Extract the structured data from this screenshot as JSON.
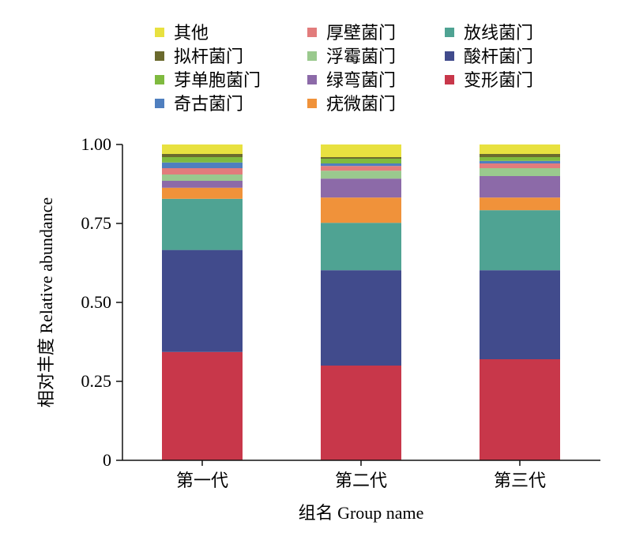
{
  "chart_data": {
    "type": "bar",
    "stacked": true,
    "categories": [
      "第一代",
      "第二代",
      "第三代"
    ],
    "xlabel": "组名 Group name",
    "ylabel": "相对丰度 Relative abundance",
    "ylim": [
      0,
      1
    ],
    "yticks": [
      "0",
      "0.25",
      "0.50",
      "0.75",
      "1.00"
    ],
    "series": [
      {
        "name": "变形菌门",
        "color": "#c8374a",
        "values": [
          0.343,
          0.3,
          0.32
        ]
      },
      {
        "name": "酸杆菌门",
        "color": "#414b8c",
        "values": [
          0.323,
          0.302,
          0.282
        ]
      },
      {
        "name": "放线菌门",
        "color": "#4fa393",
        "values": [
          0.162,
          0.15,
          0.19
        ]
      },
      {
        "name": "疣微菌门",
        "color": "#f0923a",
        "values": [
          0.035,
          0.08,
          0.04
        ]
      },
      {
        "name": "绿弯菌门",
        "color": "#8c6aa8",
        "values": [
          0.022,
          0.06,
          0.068
        ]
      },
      {
        "name": "浮霉菌门",
        "color": "#9ac98e",
        "values": [
          0.02,
          0.025,
          0.025
        ]
      },
      {
        "name": "厚壁菌门",
        "color": "#e27c7c",
        "values": [
          0.02,
          0.015,
          0.015
        ]
      },
      {
        "name": "奇古菌门",
        "color": "#4f7fbf",
        "values": [
          0.018,
          0.008,
          0.008
        ]
      },
      {
        "name": "芽单胞菌门",
        "color": "#7fba3f",
        "values": [
          0.017,
          0.015,
          0.012
        ]
      },
      {
        "name": "拟杆菌门",
        "color": "#6b6a2e",
        "values": [
          0.01,
          0.005,
          0.01
        ]
      },
      {
        "name": "其他",
        "color": "#e8e140",
        "values": [
          0.03,
          0.04,
          0.03
        ]
      }
    ],
    "legend": {
      "placement": "top",
      "columns": [
        [
          "其他",
          "拟杆菌门",
          "芽单胞菌门",
          "奇古菌门"
        ],
        [
          "厚壁菌门",
          "浮霉菌门",
          "绿弯菌门",
          "疣微菌门"
        ],
        [
          "放线菌门",
          "酸杆菌门",
          "变形菌门"
        ]
      ]
    }
  }
}
